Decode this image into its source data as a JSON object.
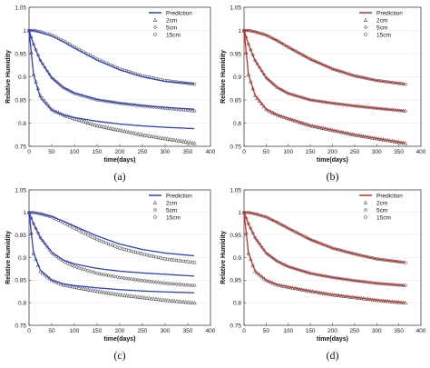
{
  "chart_data": [
    {
      "type": "line",
      "label": "(a)",
      "xlabel": "time(days)",
      "ylabel": "Relative Humidity",
      "xlim": [
        0,
        400
      ],
      "ylim": [
        0.75,
        1.05
      ],
      "xticks": [
        0,
        50,
        100,
        150,
        200,
        250,
        300,
        350,
        400
      ],
      "yticks": [
        0.75,
        0.8,
        0.85,
        0.9,
        0.95,
        1,
        1.05
      ],
      "prediction_color": "#2b3fc9",
      "legend_position": "top-right",
      "legend": {
        "prediction": "Prediction",
        "markers": [
          "2cm",
          "5cm",
          "15cm"
        ]
      },
      "prediction": [
        {
          "x": [
            0,
            10,
            25,
            50,
            75,
            100,
            150,
            200,
            250,
            300,
            365
          ],
          "y": [
            1.0,
            0.905,
            0.855,
            0.828,
            0.818,
            0.812,
            0.804,
            0.798,
            0.794,
            0.791,
            0.788
          ]
        },
        {
          "x": [
            0,
            10,
            25,
            50,
            75,
            100,
            150,
            200,
            250,
            300,
            365
          ],
          "y": [
            1.0,
            0.97,
            0.935,
            0.898,
            0.877,
            0.865,
            0.851,
            0.843,
            0.838,
            0.834,
            0.83
          ]
        },
        {
          "x": [
            0,
            10,
            25,
            50,
            75,
            100,
            150,
            200,
            250,
            300,
            365
          ],
          "y": [
            1.0,
            1.0,
            0.996,
            0.988,
            0.976,
            0.962,
            0.936,
            0.915,
            0.9,
            0.89,
            0.885
          ]
        }
      ],
      "measured": [
        {
          "name": "2cm",
          "x": [
            0,
            10,
            25,
            50,
            75,
            100,
            150,
            200,
            250,
            300,
            365
          ],
          "y": [
            1.0,
            0.905,
            0.86,
            0.83,
            0.818,
            0.81,
            0.795,
            0.785,
            0.775,
            0.767,
            0.757
          ]
        },
        {
          "name": "5cm",
          "x": [
            0,
            10,
            25,
            50,
            75,
            100,
            150,
            200,
            250,
            300,
            365
          ],
          "y": [
            1.0,
            0.97,
            0.935,
            0.898,
            0.877,
            0.864,
            0.85,
            0.843,
            0.837,
            0.832,
            0.826
          ]
        },
        {
          "name": "15cm",
          "x": [
            0,
            10,
            25,
            50,
            75,
            100,
            150,
            200,
            250,
            300,
            365
          ],
          "y": [
            1.0,
            1.0,
            0.997,
            0.99,
            0.978,
            0.964,
            0.938,
            0.917,
            0.902,
            0.892,
            0.884
          ]
        }
      ]
    },
    {
      "type": "line",
      "label": "(b)",
      "xlabel": "time(days)",
      "ylabel": "Relative Humidity",
      "xlim": [
        0,
        400
      ],
      "ylim": [
        0.75,
        1.05
      ],
      "xticks": [
        0,
        50,
        100,
        150,
        200,
        250,
        300,
        350,
        400
      ],
      "yticks": [
        0.75,
        0.8,
        0.85,
        0.9,
        0.95,
        1,
        1.05
      ],
      "prediction_color": "#cc2b2b",
      "legend_position": "top-right",
      "legend": {
        "prediction": "Prediction",
        "markers": [
          "2cm",
          "5cm",
          "15cm"
        ]
      },
      "prediction": [
        {
          "x": [
            0,
            10,
            25,
            50,
            75,
            100,
            150,
            200,
            250,
            300,
            365
          ],
          "y": [
            1.0,
            0.905,
            0.86,
            0.83,
            0.818,
            0.81,
            0.795,
            0.785,
            0.775,
            0.767,
            0.757
          ]
        },
        {
          "x": [
            0,
            10,
            25,
            50,
            75,
            100,
            150,
            200,
            250,
            300,
            365
          ],
          "y": [
            1.0,
            0.97,
            0.935,
            0.898,
            0.877,
            0.864,
            0.85,
            0.843,
            0.837,
            0.832,
            0.826
          ]
        },
        {
          "x": [
            0,
            10,
            25,
            50,
            75,
            100,
            150,
            200,
            250,
            300,
            365
          ],
          "y": [
            1.0,
            1.0,
            0.997,
            0.99,
            0.978,
            0.964,
            0.938,
            0.917,
            0.902,
            0.892,
            0.884
          ]
        }
      ],
      "measured": [
        {
          "name": "2cm",
          "x": [
            0,
            10,
            25,
            50,
            75,
            100,
            150,
            200,
            250,
            300,
            365
          ],
          "y": [
            1.0,
            0.905,
            0.86,
            0.83,
            0.818,
            0.81,
            0.795,
            0.785,
            0.775,
            0.767,
            0.757
          ]
        },
        {
          "name": "5cm",
          "x": [
            0,
            10,
            25,
            50,
            75,
            100,
            150,
            200,
            250,
            300,
            365
          ],
          "y": [
            1.0,
            0.97,
            0.935,
            0.898,
            0.877,
            0.864,
            0.85,
            0.843,
            0.837,
            0.832,
            0.826
          ]
        },
        {
          "name": "15cm",
          "x": [
            0,
            10,
            25,
            50,
            75,
            100,
            150,
            200,
            250,
            300,
            365
          ],
          "y": [
            1.0,
            1.0,
            0.997,
            0.99,
            0.978,
            0.964,
            0.938,
            0.917,
            0.902,
            0.892,
            0.884
          ]
        }
      ]
    },
    {
      "type": "line",
      "label": "(c)",
      "xlabel": "time(days)",
      "ylabel": "Relative Humidity",
      "xlim": [
        0,
        400
      ],
      "ylim": [
        0.75,
        1.05
      ],
      "xticks": [
        0,
        50,
        100,
        150,
        200,
        250,
        300,
        350,
        400
      ],
      "yticks": [
        0.75,
        0.8,
        0.85,
        0.9,
        0.95,
        1,
        1.05
      ],
      "prediction_color": "#2b3fc9",
      "legend_position": "top-right",
      "legend": {
        "prediction": "Prediction",
        "markers": [
          "2cm",
          "5cm",
          "15cm"
        ]
      },
      "prediction": [
        {
          "x": [
            0,
            10,
            25,
            50,
            75,
            100,
            150,
            200,
            250,
            300,
            365
          ],
          "y": [
            1.0,
            0.91,
            0.872,
            0.85,
            0.842,
            0.838,
            0.833,
            0.829,
            0.826,
            0.824,
            0.822
          ]
        },
        {
          "x": [
            0,
            10,
            25,
            50,
            75,
            100,
            150,
            200,
            250,
            300,
            365
          ],
          "y": [
            1.0,
            0.975,
            0.944,
            0.912,
            0.895,
            0.886,
            0.876,
            0.87,
            0.866,
            0.863,
            0.859
          ]
        },
        {
          "x": [
            0,
            10,
            25,
            50,
            75,
            100,
            150,
            200,
            250,
            300,
            365
          ],
          "y": [
            1.0,
            1.0,
            0.997,
            0.991,
            0.981,
            0.97,
            0.948,
            0.93,
            0.918,
            0.91,
            0.904
          ]
        }
      ],
      "measured": [
        {
          "name": "2cm",
          "x": [
            0,
            10,
            25,
            50,
            75,
            100,
            150,
            200,
            250,
            300,
            365
          ],
          "y": [
            1.0,
            0.91,
            0.87,
            0.85,
            0.84,
            0.835,
            0.826,
            0.818,
            0.812,
            0.806,
            0.8
          ]
        },
        {
          "name": "5cm",
          "x": [
            0,
            10,
            25,
            50,
            75,
            100,
            150,
            200,
            250,
            300,
            365
          ],
          "y": [
            1.0,
            0.975,
            0.944,
            0.91,
            0.892,
            0.88,
            0.865,
            0.856,
            0.849,
            0.843,
            0.838
          ]
        },
        {
          "name": "15cm",
          "x": [
            0,
            10,
            25,
            50,
            75,
            100,
            150,
            200,
            250,
            300,
            365
          ],
          "y": [
            1.0,
            1.0,
            0.997,
            0.99,
            0.978,
            0.965,
            0.94,
            0.921,
            0.908,
            0.897,
            0.889
          ]
        }
      ]
    },
    {
      "type": "line",
      "label": "(d)",
      "xlabel": "time(days)",
      "ylabel": "Relative Humidity",
      "xlim": [
        0,
        400
      ],
      "ylim": [
        0.75,
        1.05
      ],
      "xticks": [
        0,
        50,
        100,
        150,
        200,
        250,
        300,
        350,
        400
      ],
      "yticks": [
        0.75,
        0.8,
        0.85,
        0.9,
        0.95,
        1,
        1.05
      ],
      "prediction_color": "#cc2b2b",
      "legend_position": "top-right",
      "legend": {
        "prediction": "Prediction",
        "markers": [
          "2cm",
          "5cm",
          "15cm"
        ]
      },
      "prediction": [
        {
          "x": [
            0,
            10,
            25,
            50,
            75,
            100,
            150,
            200,
            250,
            300,
            365
          ],
          "y": [
            1.0,
            0.91,
            0.87,
            0.85,
            0.84,
            0.835,
            0.826,
            0.818,
            0.812,
            0.806,
            0.8
          ]
        },
        {
          "x": [
            0,
            10,
            25,
            50,
            75,
            100,
            150,
            200,
            250,
            300,
            365
          ],
          "y": [
            1.0,
            0.975,
            0.944,
            0.91,
            0.892,
            0.88,
            0.865,
            0.856,
            0.849,
            0.843,
            0.838
          ]
        },
        {
          "x": [
            0,
            10,
            25,
            50,
            75,
            100,
            150,
            200,
            250,
            300,
            365
          ],
          "y": [
            1.0,
            1.0,
            0.997,
            0.99,
            0.978,
            0.965,
            0.94,
            0.921,
            0.908,
            0.897,
            0.889
          ]
        }
      ],
      "measured": [
        {
          "name": "2cm",
          "x": [
            0,
            10,
            25,
            50,
            75,
            100,
            150,
            200,
            250,
            300,
            365
          ],
          "y": [
            1.0,
            0.91,
            0.87,
            0.85,
            0.84,
            0.835,
            0.826,
            0.818,
            0.812,
            0.806,
            0.8
          ]
        },
        {
          "name": "5cm",
          "x": [
            0,
            10,
            25,
            50,
            75,
            100,
            150,
            200,
            250,
            300,
            365
          ],
          "y": [
            1.0,
            0.975,
            0.944,
            0.91,
            0.892,
            0.88,
            0.865,
            0.856,
            0.849,
            0.843,
            0.838
          ]
        },
        {
          "name": "15cm",
          "x": [
            0,
            10,
            25,
            50,
            75,
            100,
            150,
            200,
            250,
            300,
            365
          ],
          "y": [
            1.0,
            1.0,
            0.997,
            0.99,
            0.978,
            0.965,
            0.94,
            0.921,
            0.908,
            0.897,
            0.889
          ]
        }
      ]
    }
  ]
}
